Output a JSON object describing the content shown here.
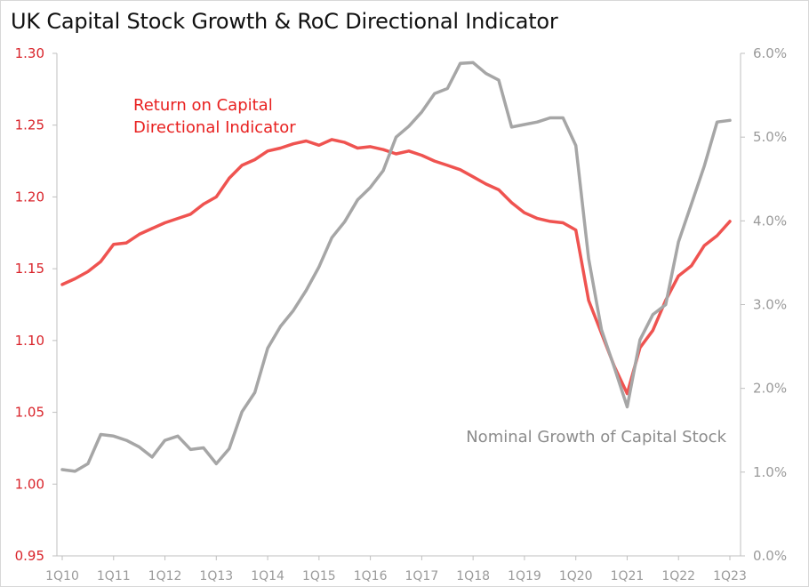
{
  "chart_data": {
    "type": "line",
    "title": "UK Capital Stock Growth & RoC Directional Indicator",
    "x": [
      "1Q10",
      "2Q10",
      "3Q10",
      "4Q10",
      "1Q11",
      "2Q11",
      "3Q11",
      "4Q11",
      "1Q12",
      "2Q12",
      "3Q12",
      "4Q12",
      "1Q13",
      "2Q13",
      "3Q13",
      "4Q13",
      "1Q14",
      "2Q14",
      "3Q14",
      "4Q14",
      "1Q15",
      "2Q15",
      "3Q15",
      "4Q15",
      "1Q16",
      "2Q16",
      "3Q16",
      "4Q16",
      "1Q17",
      "2Q17",
      "3Q17",
      "4Q17",
      "1Q18",
      "2Q18",
      "3Q18",
      "4Q18",
      "1Q19",
      "2Q19",
      "3Q19",
      "4Q19",
      "1Q20",
      "2Q20",
      "3Q20",
      "4Q20",
      "1Q21",
      "2Q21",
      "3Q21",
      "4Q21",
      "1Q22",
      "2Q22",
      "3Q22",
      "4Q22",
      "1Q23"
    ],
    "x_tick_labels": [
      "1Q10",
      "1Q11",
      "1Q12",
      "1Q13",
      "1Q14",
      "1Q15",
      "1Q16",
      "1Q17",
      "1Q18",
      "1Q19",
      "1Q20",
      "1Q21",
      "1Q22",
      "1Q23"
    ],
    "y_left": {
      "range": [
        0.95,
        1.3
      ],
      "ticks": [
        "0.95",
        "1.00",
        "1.05",
        "1.10",
        "1.15",
        "1.20",
        "1.25",
        "1.30"
      ],
      "color": "#d9232a"
    },
    "y_right": {
      "range": [
        0.0,
        6.0
      ],
      "ticks": [
        "0.0%",
        "1.0%",
        "2.0%",
        "3.0%",
        "4.0%",
        "5.0%",
        "6.0%"
      ],
      "color": "#9a9a9a"
    },
    "series": [
      {
        "name": "Return on Capital Directional Indicator",
        "label_lines": [
          "Return on Capital",
          "Directional Indicator"
        ],
        "axis": "left",
        "color": "#ef5350",
        "values": [
          1.139,
          1.143,
          1.148,
          1.155,
          1.167,
          1.168,
          1.174,
          1.178,
          1.182,
          1.185,
          1.188,
          1.195,
          1.2,
          1.213,
          1.222,
          1.226,
          1.232,
          1.234,
          1.237,
          1.239,
          1.236,
          1.24,
          1.238,
          1.234,
          1.235,
          1.233,
          1.23,
          1.232,
          1.229,
          1.225,
          1.222,
          1.219,
          1.214,
          1.209,
          1.205,
          1.196,
          1.189,
          1.185,
          1.183,
          1.182,
          1.177,
          1.128,
          1.105,
          1.082,
          1.063,
          1.095,
          1.107,
          1.128,
          1.145,
          1.152,
          1.166,
          1.173,
          1.183
        ]
      },
      {
        "name": "Nominal Growth of Capital Stock",
        "label_lines": [
          "Nominal Growth  of Capital Stock"
        ],
        "axis": "right",
        "color": "#a6a6a6",
        "values": [
          1.03,
          1.01,
          1.1,
          1.45,
          1.43,
          1.38,
          1.3,
          1.18,
          1.38,
          1.43,
          1.27,
          1.29,
          1.1,
          1.28,
          1.72,
          1.95,
          2.48,
          2.74,
          2.93,
          3.17,
          3.45,
          3.8,
          3.99,
          4.25,
          4.4,
          4.6,
          5.0,
          5.13,
          5.3,
          5.52,
          5.58,
          5.88,
          5.89,
          5.76,
          5.68,
          5.12,
          5.15,
          5.18,
          5.23,
          5.23,
          4.9,
          3.55,
          2.7,
          2.25,
          1.78,
          2.58,
          2.88,
          3.0,
          3.75,
          4.2,
          4.65,
          5.18,
          5.2
        ]
      }
    ],
    "grid": false,
    "legend": "inline labels"
  }
}
